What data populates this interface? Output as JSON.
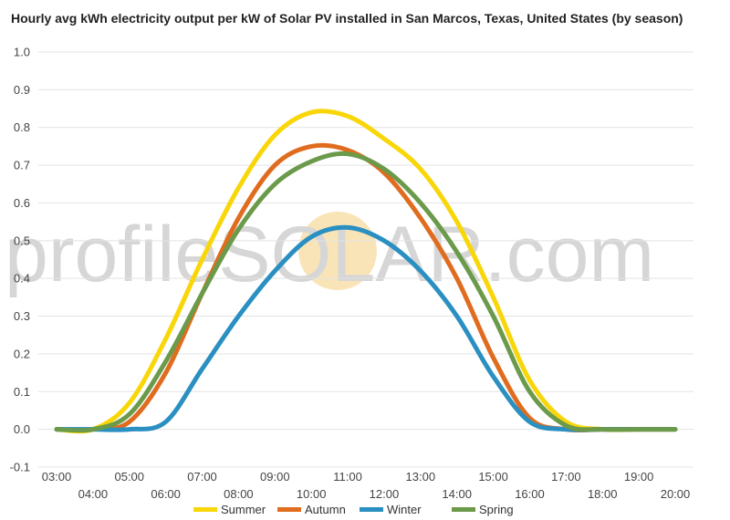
{
  "title": "Hourly avg kWh electricity output per kW of Solar PV installed in San Marcos, Texas, United States (by season)",
  "watermark": {
    "text": "profileSOLAR.com",
    "sun_color": "#f7d99a"
  },
  "chart_data": {
    "type": "line",
    "title": "Hourly avg kWh electricity output per kW of Solar PV installed in San Marcos, Texas, United States (by season)",
    "xlabel": "",
    "ylabel": "",
    "x": [
      "03:00",
      "04:00",
      "05:00",
      "06:00",
      "07:00",
      "08:00",
      "09:00",
      "10:00",
      "11:00",
      "12:00",
      "13:00",
      "14:00",
      "15:00",
      "16:00",
      "17:00",
      "18:00",
      "19:00",
      "20:00"
    ],
    "ylim": [
      -0.1,
      1.0
    ],
    "yticks": [
      -0.1,
      0.0,
      0.1,
      0.2,
      0.3,
      0.4,
      0.5,
      0.6,
      0.7,
      0.8,
      0.9,
      1.0
    ],
    "ytick_labels": [
      "-0.1",
      "0.0",
      "0.1",
      "0.2",
      "0.3",
      "0.4",
      "0.5",
      "0.6",
      "0.7",
      "0.8",
      "0.9",
      "1.0"
    ],
    "grid": true,
    "legend_position": "bottom",
    "series": [
      {
        "name": "Summer",
        "color": "#f8d608",
        "values": [
          0.0,
          0.0,
          0.07,
          0.24,
          0.45,
          0.64,
          0.78,
          0.84,
          0.83,
          0.77,
          0.69,
          0.55,
          0.35,
          0.13,
          0.02,
          0.0,
          0.0,
          0.0
        ]
      },
      {
        "name": "Autumn",
        "color": "#e06c1f",
        "values": [
          0.0,
          0.0,
          0.02,
          0.15,
          0.36,
          0.56,
          0.7,
          0.75,
          0.74,
          0.68,
          0.56,
          0.4,
          0.19,
          0.03,
          0.0,
          0.0,
          0.0,
          0.0
        ]
      },
      {
        "name": "Winter",
        "color": "#2a8fc1",
        "values": [
          0.0,
          0.0,
          0.0,
          0.02,
          0.16,
          0.3,
          0.42,
          0.51,
          0.535,
          0.5,
          0.42,
          0.3,
          0.14,
          0.02,
          0.0,
          0.0,
          0.0,
          0.0
        ]
      },
      {
        "name": "Spring",
        "color": "#6a9a4a",
        "values": [
          0.0,
          0.0,
          0.04,
          0.18,
          0.36,
          0.53,
          0.65,
          0.71,
          0.73,
          0.69,
          0.6,
          0.47,
          0.3,
          0.1,
          0.01,
          0.0,
          0.0,
          0.0
        ]
      }
    ]
  }
}
